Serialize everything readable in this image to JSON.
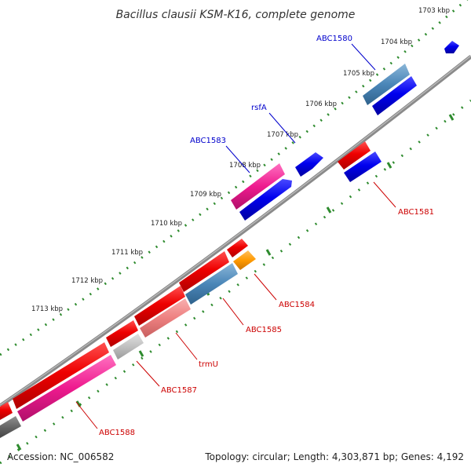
{
  "title": "Bacillus clausii KSM-K16, complete genome",
  "footer": {
    "accession": "Accession: NC_006582",
    "summary": "Topology: circular; Length: 4,303,871 bp; Genes: 4,192"
  },
  "colors": {
    "backbone": "#8a8a8a",
    "forward_label": "#0000cc",
    "reverse_label": "#cc0000",
    "tick_dots": "#2e8b2e"
  },
  "ticks": [
    "1703 kbp",
    "1704 kbp",
    "1705 kbp",
    "1706 kbp",
    "1707 kbp",
    "1708 kbp",
    "1709 kbp",
    "1710 kbp",
    "1711 kbp",
    "1712 kbp",
    "1713 kbp"
  ],
  "gene_labels": [
    {
      "id": "abc1580",
      "text": "ABC1580",
      "strand": "forward"
    },
    {
      "id": "rsfa",
      "text": "rsfA",
      "strand": "forward"
    },
    {
      "id": "abc1583",
      "text": "ABC1583",
      "strand": "forward"
    },
    {
      "id": "abc1581",
      "text": "ABC1581",
      "strand": "reverse"
    },
    {
      "id": "abc1584",
      "text": "ABC1584",
      "strand": "reverse"
    },
    {
      "id": "abc1585",
      "text": "ABC1585",
      "strand": "reverse"
    },
    {
      "id": "trmu",
      "text": "trmU",
      "strand": "reverse"
    },
    {
      "id": "abc1587",
      "text": "ABC1587",
      "strand": "reverse"
    },
    {
      "id": "abc1588",
      "text": "ABC1588",
      "strand": "reverse"
    }
  ]
}
